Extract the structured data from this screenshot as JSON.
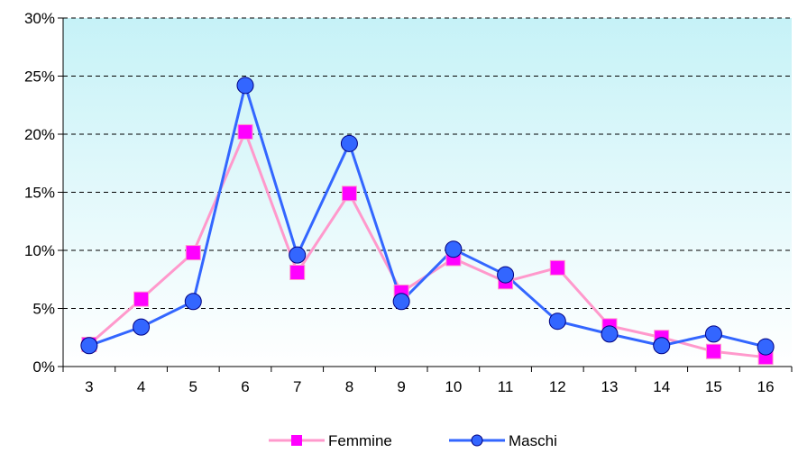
{
  "chart_data": {
    "type": "line",
    "title": "",
    "xlabel": "",
    "ylabel": "",
    "categories": [
      "3",
      "4",
      "5",
      "6",
      "7",
      "8",
      "9",
      "10",
      "11",
      "12",
      "13",
      "14",
      "15",
      "16"
    ],
    "y_ticks": [
      "0%",
      "5%",
      "10%",
      "15%",
      "20%",
      "25%",
      "30%"
    ],
    "ylim": [
      0,
      30
    ],
    "grid": "horizontal-dashed",
    "legend_position": "bottom",
    "plot_background": [
      "#c6f2f7",
      "#ffffff"
    ],
    "series": [
      {
        "name": "Femmine",
        "color": "#ff99cc",
        "marker": "square",
        "marker_color": "#ff00ff",
        "values": [
          1.9,
          5.8,
          9.8,
          20.2,
          8.1,
          14.9,
          6.4,
          9.3,
          7.3,
          8.5,
          3.5,
          2.5,
          1.3,
          0.8
        ]
      },
      {
        "name": "Maschi",
        "color": "#3366ff",
        "marker": "circle",
        "marker_color": "#3366ff",
        "values": [
          1.8,
          3.4,
          5.6,
          24.2,
          9.6,
          19.2,
          5.6,
          10.1,
          7.9,
          3.9,
          2.8,
          1.8,
          2.8,
          1.7
        ]
      }
    ]
  }
}
